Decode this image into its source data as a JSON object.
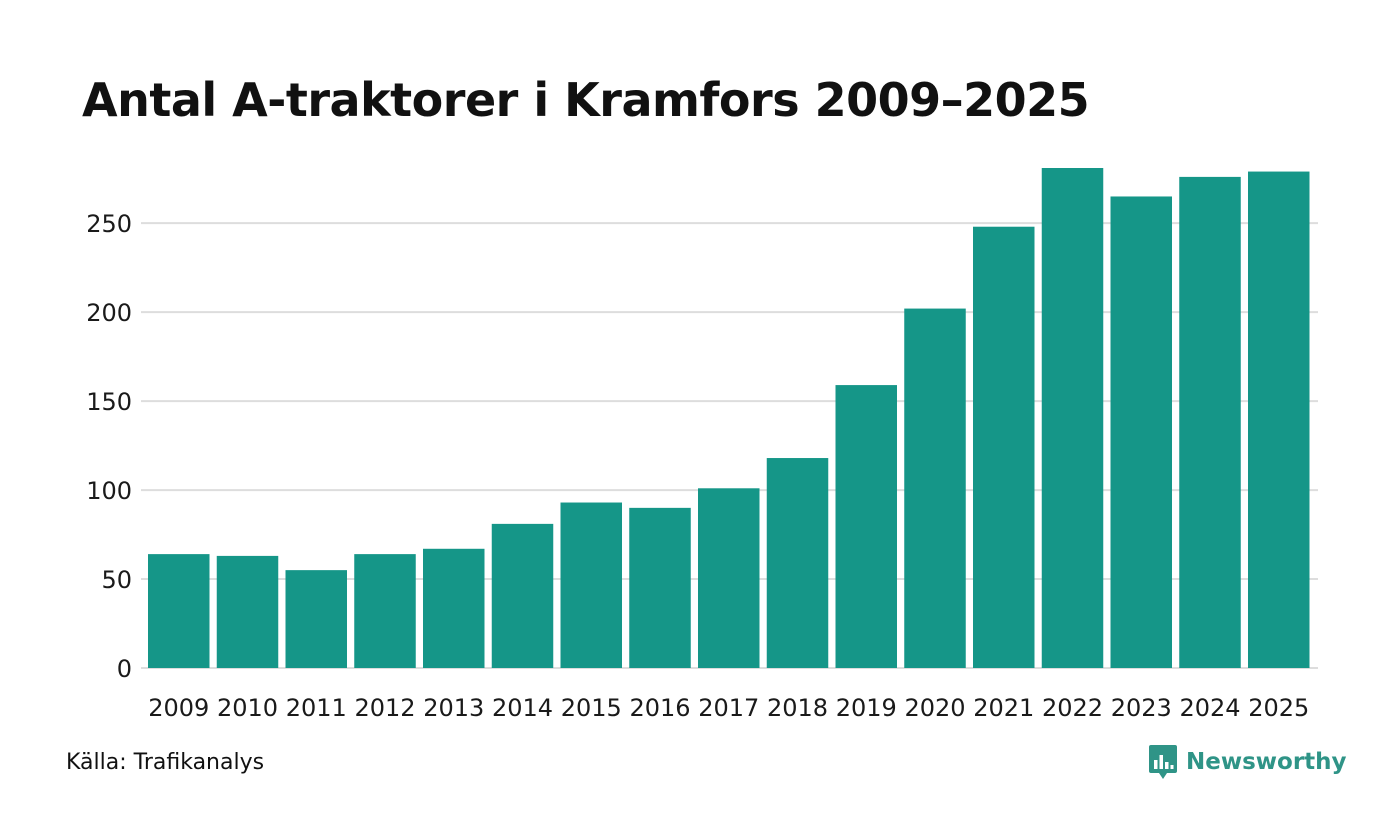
{
  "colors": {
    "bar": "#159688",
    "grid": "#dddddd",
    "brand": "#2f9487"
  },
  "chart_data": {
    "type": "bar",
    "title": "Antal A-traktorer i Kramfors 2009–2025",
    "xlabel": "",
    "ylabel": "",
    "categories": [
      "2009",
      "2010",
      "2011",
      "2012",
      "2013",
      "2014",
      "2015",
      "2016",
      "2017",
      "2018",
      "2019",
      "2020",
      "2021",
      "2022",
      "2023",
      "2024",
      "2025"
    ],
    "values": [
      64,
      63,
      55,
      64,
      67,
      81,
      93,
      90,
      101,
      118,
      159,
      202,
      248,
      281,
      265,
      276,
      279
    ],
    "ylim": [
      0,
      281
    ],
    "yticks": [
      0,
      50,
      100,
      150,
      200,
      250
    ],
    "grid": true,
    "legend": "none"
  },
  "footer": {
    "source": "Källa: Trafikanalys",
    "brand_name": "Newsworthy",
    "brand_icon": "newsworthy-logo-icon"
  }
}
